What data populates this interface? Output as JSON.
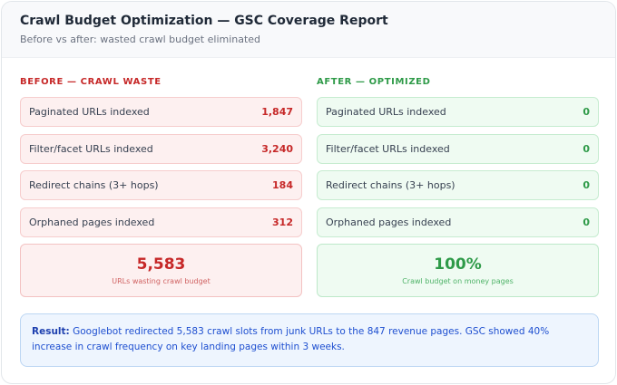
{
  "header": {
    "title": "Crawl Budget Optimization — GSC Coverage Report",
    "subtitle": "Before vs after: wasted crawl budget eliminated"
  },
  "before": {
    "heading": "BEFORE — CRAWL WASTE",
    "rows": [
      {
        "label": "Paginated URLs indexed",
        "value": "1,847"
      },
      {
        "label": "Filter/facet URLs indexed",
        "value": "3,240"
      },
      {
        "label": "Redirect chains (3+ hops)",
        "value": "184"
      },
      {
        "label": "Orphaned pages indexed",
        "value": "312"
      }
    ],
    "summary": {
      "value": "5,583",
      "caption": "URLs wasting crawl budget"
    },
    "color": "#c62828"
  },
  "after": {
    "heading": "AFTER — OPTIMIZED",
    "rows": [
      {
        "label": "Paginated URLs indexed",
        "value": "0"
      },
      {
        "label": "Filter/facet URLs indexed",
        "value": "0"
      },
      {
        "label": "Redirect chains (3+ hops)",
        "value": "0"
      },
      {
        "label": "Orphaned pages indexed",
        "value": "0"
      }
    ],
    "summary": {
      "value": "100%",
      "caption": "Crawl budget on money pages"
    },
    "color": "#2e9a48"
  },
  "result": {
    "label": "Result:",
    "text": " Googlebot redirected 5,583 crawl slots from junk URLs to the 847 revenue pages. GSC showed 40% increase in crawl frequency on key landing pages within 3 weeks."
  }
}
